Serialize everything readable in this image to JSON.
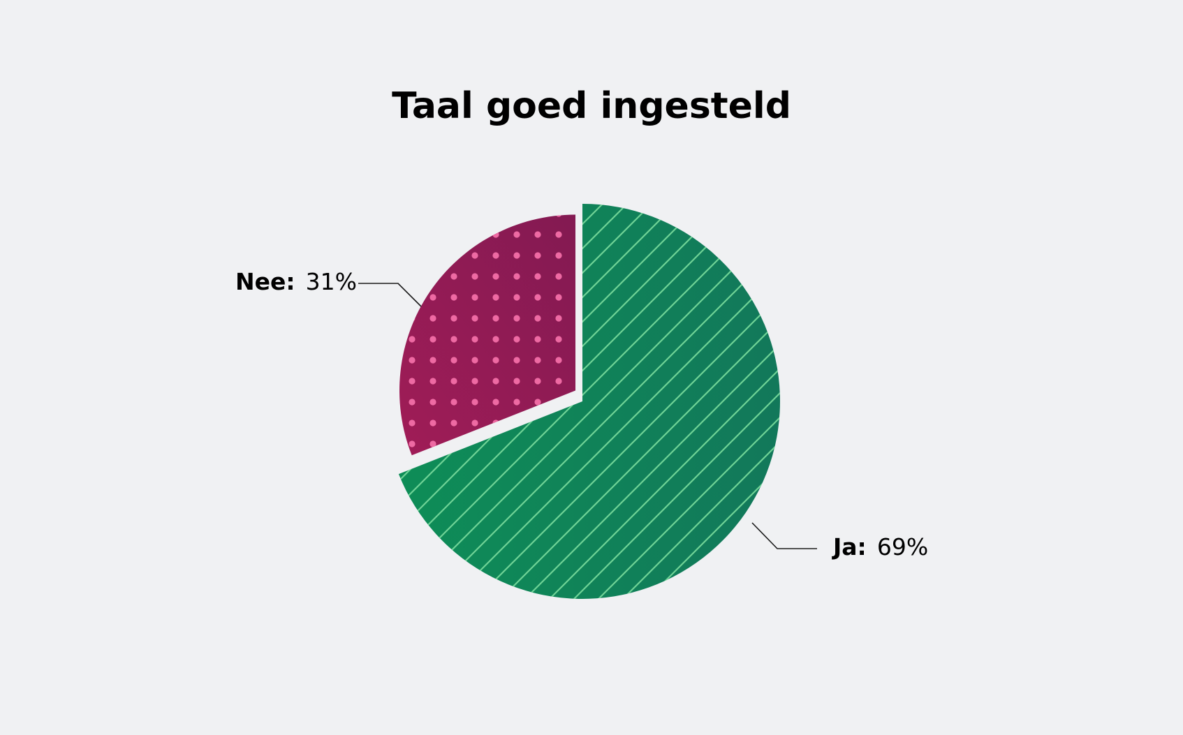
{
  "chart_data": {
    "type": "pie",
    "title": "Taal goed ingesteld",
    "slices": [
      {
        "label": "Ja",
        "value": 69,
        "value_text": "69%",
        "color": "#0f8a58",
        "pattern_color": "#6fd396",
        "pattern": "diagonal-stripes"
      },
      {
        "label": "Nee",
        "value": 31,
        "value_text": "31%",
        "color": "#8e1a55",
        "pattern_color": "#ee6aa3",
        "pattern": "dots"
      }
    ],
    "exploded_slice": "Nee",
    "background": "#f0f1f3"
  },
  "labels": {
    "ja_name": "Ja:",
    "ja_value": "69%",
    "nee_name": "Nee:",
    "nee_value": "31%"
  }
}
